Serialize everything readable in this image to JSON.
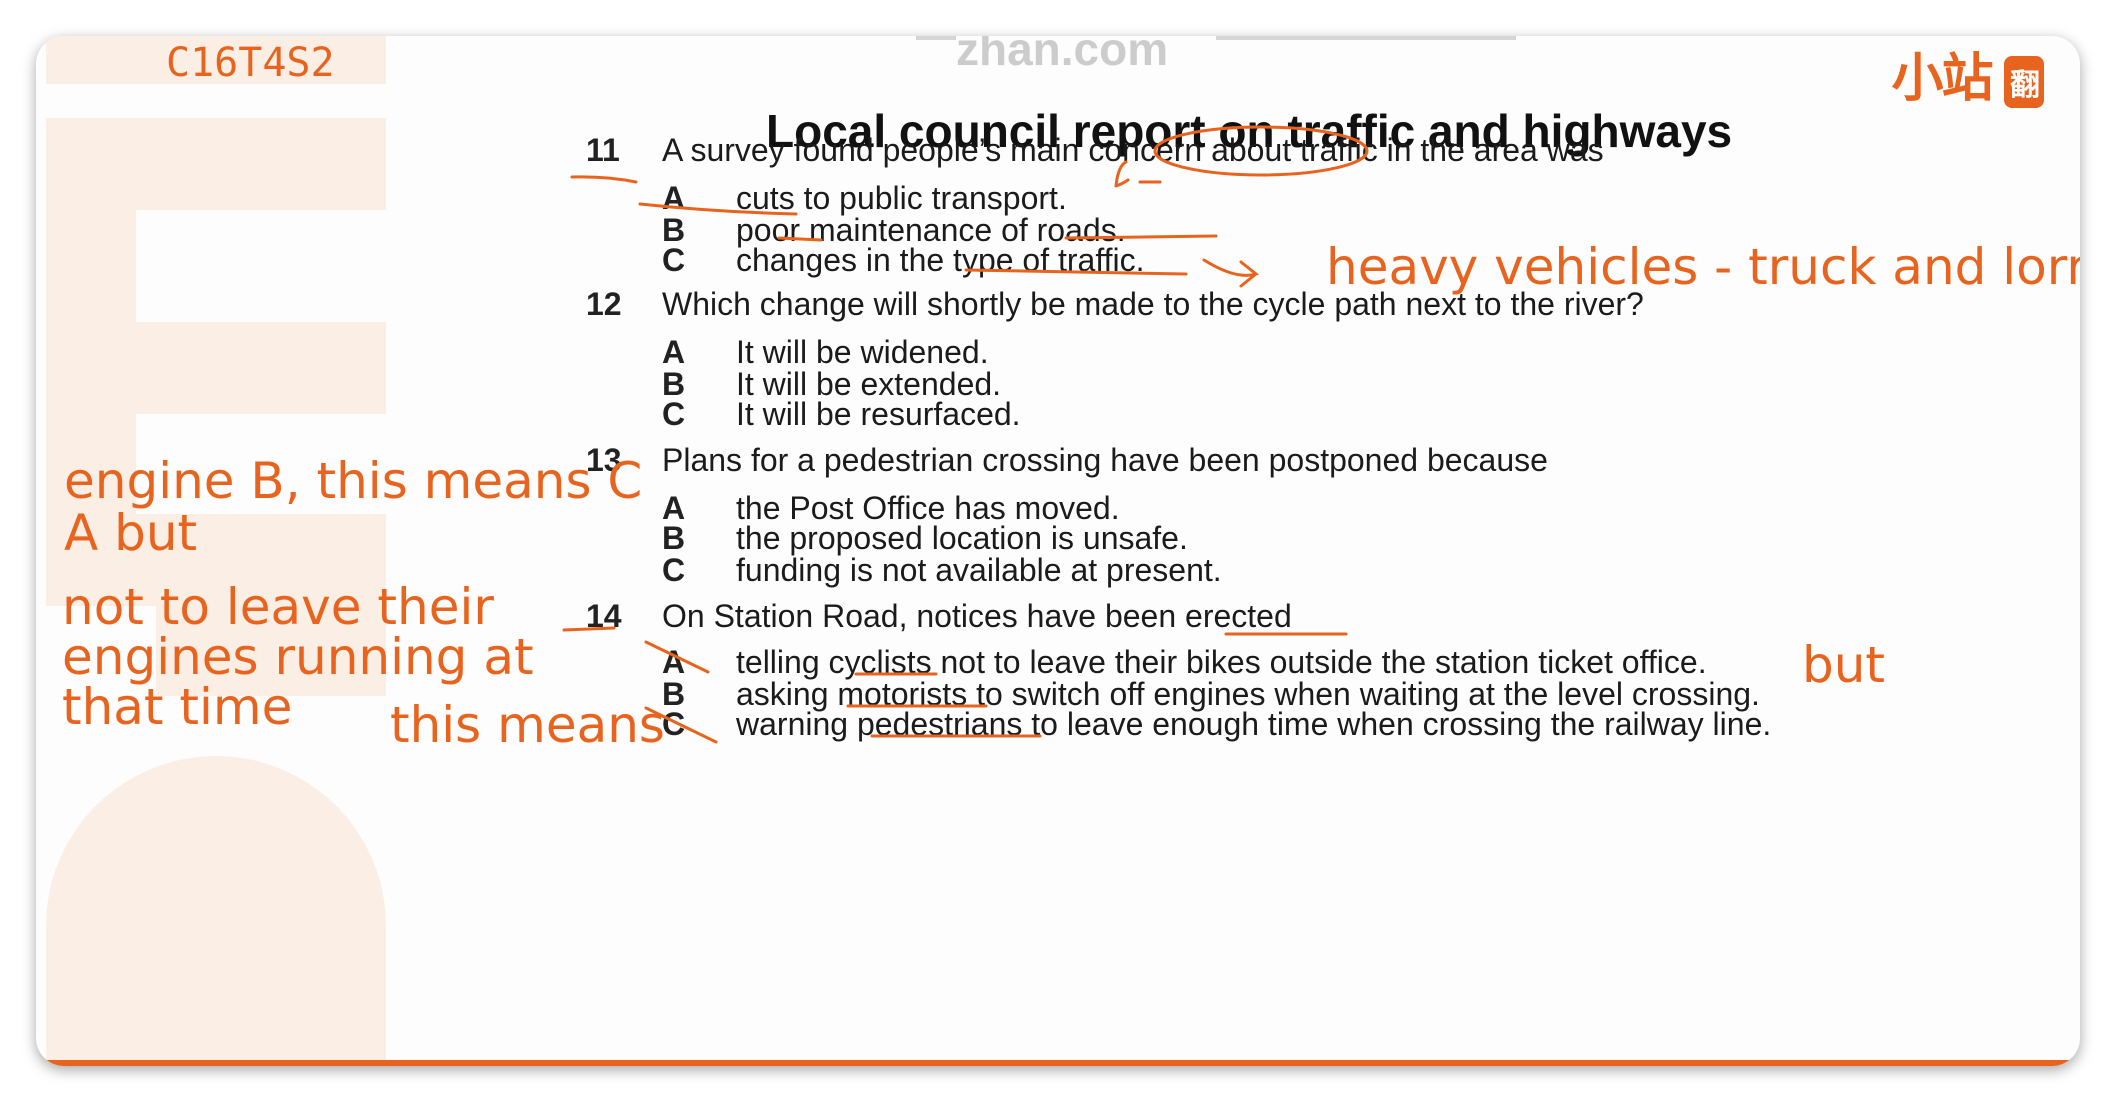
{
  "code_tag": "C16T4S2",
  "watermark": "zhan.com",
  "logo": {
    "text": "小站",
    "box": "翻"
  },
  "title": "Local council report on traffic and highways",
  "questions": [
    {
      "num": "11",
      "text": "A survey found people’s main concern about traffic in the area was",
      "options": [
        {
          "letter": "A",
          "text": "cuts to public transport."
        },
        {
          "letter": "B",
          "text": "poor maintenance of roads."
        },
        {
          "letter": "C",
          "text": "changes in the type of traffic."
        }
      ]
    },
    {
      "num": "12",
      "text": "Which change will shortly be made to the cycle path next to the river?",
      "options": [
        {
          "letter": "A",
          "text": "It will be widened."
        },
        {
          "letter": "B",
          "text": "It will be extended."
        },
        {
          "letter": "C",
          "text": "It will be resurfaced."
        }
      ]
    },
    {
      "num": "13",
      "text": "Plans for a pedestrian crossing have been postponed because",
      "options": [
        {
          "letter": "A",
          "text": "the Post Office has moved."
        },
        {
          "letter": "B",
          "text": "the proposed location is unsafe."
        },
        {
          "letter": "C",
          "text": "funding is not available at present."
        }
      ]
    },
    {
      "num": "14",
      "text": "On Station Road, notices have been erected",
      "options": [
        {
          "letter": "A",
          "text": "telling cyclists not to leave their bikes outside the station ticket office."
        },
        {
          "letter": "B",
          "text": "asking motorists to switch off engines when waiting at the level crossing."
        },
        {
          "letter": "C",
          "text": "warning pedestrians to leave enough time when crossing the railway line."
        }
      ]
    }
  ],
  "notes": {
    "heavy": "heavy vehicles - truck and lorry",
    "engine_b": "engine B, this means C",
    "a_but": "A but",
    "not_leave_1": "not to leave their",
    "not_leave_2": "engines running at",
    "not_leave_3": "that time",
    "this_means": "this means",
    "but": "but"
  },
  "colors": {
    "accent": "#e8641e",
    "text": "#1b1b1b",
    "decor": "#fbeee4"
  }
}
